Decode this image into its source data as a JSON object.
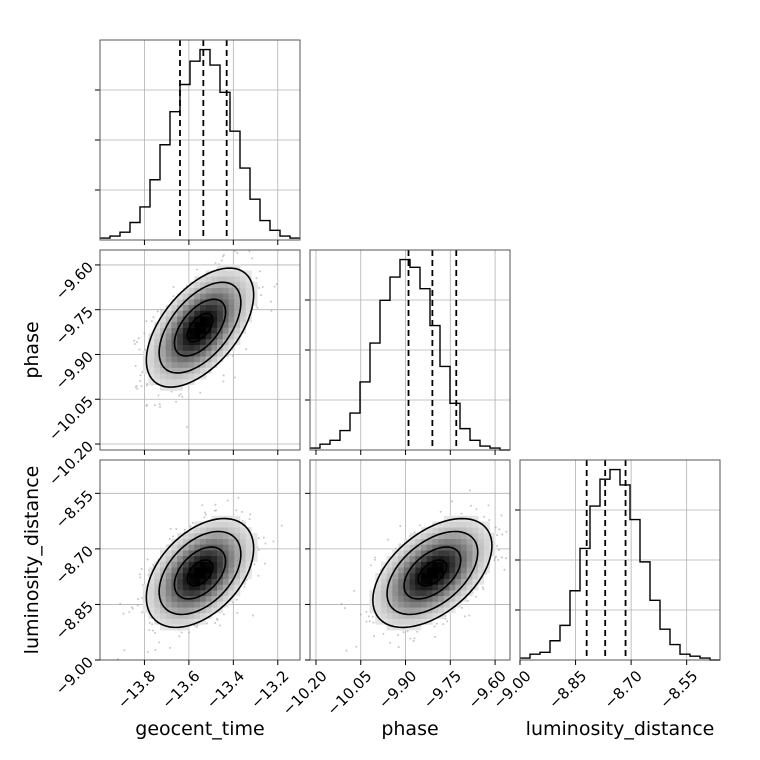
{
  "chart_data": {
    "type": "corner",
    "parameters": [
      "geocent_time",
      "phase",
      "luminosity_distance"
    ],
    "axis_labels": {
      "geocent_time": "geocent_time",
      "phase": "phase",
      "luminosity_distance": "luminosity_distance"
    },
    "ranges": {
      "geocent_time": [
        -14.0,
        -13.1
      ],
      "phase": [
        -10.22,
        -9.55
      ],
      "luminosity_distance": [
        -9.0,
        -8.46
      ]
    },
    "ticks": {
      "geocent_time": [
        {
          "value": -13.8,
          "label": "−13.8"
        },
        {
          "value": -13.6,
          "label": "−13.6"
        },
        {
          "value": -13.4,
          "label": "−13.4"
        },
        {
          "value": -13.2,
          "label": "−13.2"
        }
      ],
      "phase": [
        {
          "value": -10.2,
          "label": "−10.20"
        },
        {
          "value": -10.05,
          "label": "−10.05"
        },
        {
          "value": -9.9,
          "label": "−9.90"
        },
        {
          "value": -9.75,
          "label": "−9.75"
        },
        {
          "value": -9.6,
          "label": "−9.60"
        }
      ],
      "luminosity_distance": [
        {
          "value": -9.0,
          "label": "−9.00"
        },
        {
          "value": -8.85,
          "label": "−8.85"
        },
        {
          "value": -8.7,
          "label": "−8.70"
        },
        {
          "value": -8.55,
          "label": "−8.55"
        }
      ]
    },
    "quantiles": {
      "geocent_time": [
        -13.64,
        -13.535,
        -13.43
      ],
      "phase": [
        -9.89,
        -9.81,
        -9.73
      ],
      "luminosity_distance": [
        -8.82,
        -8.77,
        -8.715
      ]
    },
    "histograms": {
      "geocent_time": {
        "bin_start": -14.0,
        "bin_width": 0.045,
        "counts": [
          1,
          2,
          4,
          9,
          17,
          31,
          49,
          66,
          80,
          92,
          98,
          90,
          76,
          56,
          37,
          21,
          10,
          5,
          2,
          1
        ]
      },
      "phase": {
        "bin_start": -10.22,
        "bin_width": 0.0335,
        "counts": [
          1,
          3,
          5,
          10,
          19,
          35,
          55,
          77,
          89,
          98,
          94,
          83,
          64,
          43,
          24,
          11,
          5,
          2,
          1,
          0
        ]
      },
      "luminosity_distance": {
        "bin_start": -9.0,
        "bin_width": 0.027,
        "counts": [
          1,
          3,
          4,
          10,
          18,
          36,
          58,
          80,
          94,
          99,
          91,
          73,
          51,
          31,
          16,
          8,
          3,
          2,
          1,
          0
        ]
      }
    },
    "pairs": [
      {
        "x": "geocent_time",
        "y": "phase",
        "mean": [
          -13.55,
          -9.81
        ],
        "std": [
          0.115,
          0.095
        ],
        "corr": 0.55,
        "contour_levels": [
          0.5,
          1.0,
          1.6,
          2.1
        ]
      },
      {
        "x": "geocent_time",
        "y": "luminosity_distance",
        "mean": [
          -13.55,
          -8.765
        ],
        "std": [
          0.115,
          0.07
        ],
        "corr": 0.45,
        "contour_levels": [
          0.5,
          1.0,
          1.6,
          2.1
        ]
      },
      {
        "x": "phase",
        "y": "luminosity_distance",
        "mean": [
          -9.81,
          -8.765
        ],
        "std": [
          0.095,
          0.07
        ],
        "corr": 0.5,
        "contour_levels": [
          0.5,
          1.0,
          1.6,
          2.1
        ]
      }
    ],
    "grid": true,
    "colors": {
      "line": "#000000",
      "grid": "#b0b0b0",
      "scatter": "#999999"
    }
  }
}
